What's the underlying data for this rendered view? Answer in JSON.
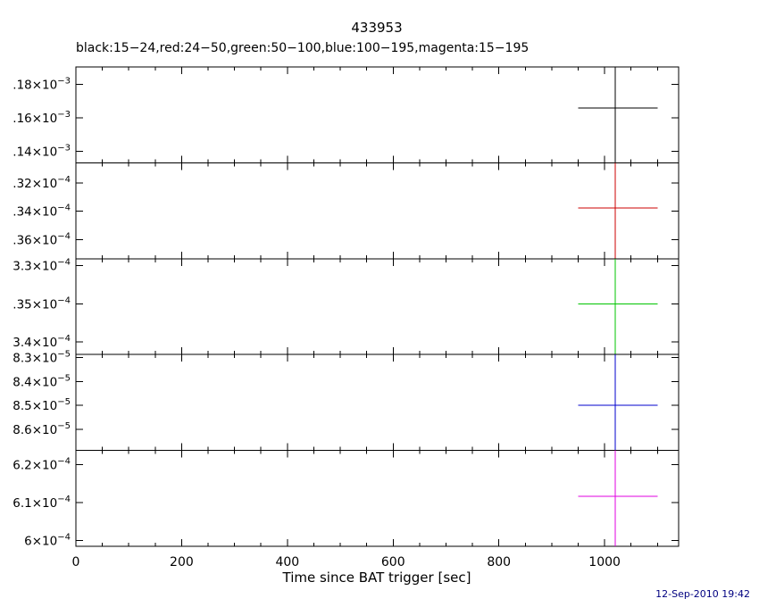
{
  "title": "433953",
  "subtitle": "black:15−24,red:24−50,green:50−100,blue:100−195,magenta:15−195",
  "xlabel": "Time since BAT trigger [sec]",
  "timestamp": "12-Sep-2010 19:42",
  "colors": {
    "frame": "#000000",
    "timestamp": "#000080"
  },
  "chart_data": {
    "type": "scatter",
    "title": "433953",
    "subtitle": "black:15−24,red:24−50,green:50−100,blue:100−195,magenta:15−195",
    "xlabel": "Time since BAT trigger [sec]",
    "x_range": [
      0,
      1140
    ],
    "x_major_ticks": [
      0,
      200,
      400,
      600,
      800,
      1000
    ],
    "x_minor_step": 50,
    "grid": false,
    "legend_position": "subtitle-line",
    "panels": [
      {
        "series": "black:15−24",
        "color_name": "black",
        "band_kev": "15−24",
        "color": "#000000",
        "exponent": "−3",
        "y_ticks": [
          {
            "label_mantissa": ".18×10",
            "label_exponent": "−3",
            "frac": 0.18
          },
          {
            "label_mantissa": ".16×10",
            "label_exponent": "−3",
            "frac": 0.53
          },
          {
            "label_mantissa": ".14×10",
            "label_exponent": "−3",
            "frac": 0.88
          }
        ],
        "point": {
          "x": 1020,
          "x_err_lo": 950,
          "x_err_hi": 1100,
          "y_frac": 0.43,
          "y_est": ".166×10−3",
          "y_err": "full-panel"
        }
      },
      {
        "series": "red:24−50",
        "color_name": "red",
        "band_kev": "24−50",
        "color": "#cc0000",
        "exponent": "−4",
        "y_ticks": [
          {
            "label_mantissa": ".32×10",
            "label_exponent": "−4",
            "frac": 0.21
          },
          {
            "label_mantissa": ".34×10",
            "label_exponent": "−4",
            "frac": 0.505
          },
          {
            "label_mantissa": ".36×10",
            "label_exponent": "−4",
            "frac": 0.8
          }
        ],
        "point": {
          "x": 1020,
          "x_err_lo": 950,
          "x_err_hi": 1100,
          "y_frac": 0.47,
          "y_est": ".338×10−4",
          "y_err": "full-panel"
        }
      },
      {
        "series": "green:50−100",
        "color_name": "green",
        "band_kev": "50−100",
        "color": "#00c400",
        "exponent": "−4",
        "y_ticks": [
          {
            "label_mantissa": "3.3×10",
            "label_exponent": "−4",
            "frac": 0.07
          },
          {
            "label_mantissa": ".35×10",
            "label_exponent": "−4",
            "frac": 0.47
          },
          {
            "label_mantissa": "3.4×10",
            "label_exponent": "−4",
            "frac": 0.87
          }
        ],
        "point": {
          "x": 1020,
          "x_err_lo": 950,
          "x_err_hi": 1100,
          "y_frac": 0.47,
          "y_est": "3.35×10−4",
          "y_err": "full-panel"
        }
      },
      {
        "series": "blue:100−195",
        "color_name": "blue",
        "band_kev": "100−195",
        "color": "#0000cc",
        "exponent": "−5",
        "y_ticks": [
          {
            "label_mantissa": "8.3×10",
            "label_exponent": "−5",
            "frac": 0.03
          },
          {
            "label_mantissa": "8.4×10",
            "label_exponent": "−5",
            "frac": 0.28
          },
          {
            "label_mantissa": "8.5×10",
            "label_exponent": "−5",
            "frac": 0.53
          },
          {
            "label_mantissa": "8.6×10",
            "label_exponent": "−5",
            "frac": 0.78
          }
        ],
        "point": {
          "x": 1020,
          "x_err_lo": 950,
          "x_err_hi": 1100,
          "y_frac": 0.53,
          "y_est": "8.5×10−5",
          "y_err": "full-panel"
        }
      },
      {
        "series": "magenta:15−195",
        "color_name": "magenta",
        "band_kev": "15−195",
        "color": "#e000e0",
        "exponent": "−4",
        "y_ticks": [
          {
            "label_mantissa": "6.2×10",
            "label_exponent": "−4",
            "frac": 0.15
          },
          {
            "label_mantissa": "6.1×10",
            "label_exponent": "−4",
            "frac": 0.545
          },
          {
            "label_mantissa": "6×10",
            "label_exponent": "−4",
            "frac": 0.94
          }
        ],
        "point": {
          "x": 1020,
          "x_err_lo": 950,
          "x_err_hi": 1100,
          "y_frac": 0.48,
          "y_est": "6.12×10−4",
          "y_err": "full-panel"
        }
      }
    ]
  }
}
